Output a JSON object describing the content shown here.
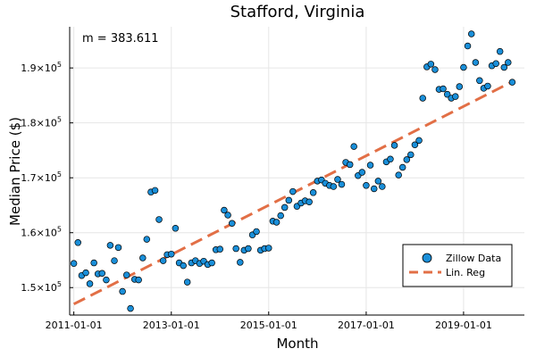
{
  "colors": {
    "scatter": "#1a8fd9",
    "scatter_stroke": "#000000",
    "regression": "#e26f46",
    "grid": "#e6e6e6",
    "axis": "#000000"
  },
  "chart_data": {
    "type": "scatter",
    "title": "Stafford, Virginia",
    "xlabel": "Month",
    "ylabel": "Median Price ($)",
    "annotation": "m = 383.611",
    "x_scale": "date",
    "xlim": [
      "2010-12-01",
      "2020-04-01"
    ],
    "ylim": [
      145000,
      197500
    ],
    "x_ticks": [
      "2011-01-01",
      "2013-01-01",
      "2015-01-01",
      "2017-01-01",
      "2019-01-01"
    ],
    "y_ticks": [
      {
        "value": 150000,
        "mantissa": "1.5",
        "base": "10",
        "exp": "5"
      },
      {
        "value": 160000,
        "mantissa": "1.6",
        "base": "10",
        "exp": "5"
      },
      {
        "value": 170000,
        "mantissa": "1.7",
        "base": "10",
        "exp": "5"
      },
      {
        "value": 180000,
        "mantissa": "1.8",
        "base": "10",
        "exp": "5"
      },
      {
        "value": 190000,
        "mantissa": "1.9",
        "base": "10",
        "exp": "5"
      }
    ],
    "grid": true,
    "legend_position": "bottom-right",
    "series": [
      {
        "name": "Zillow Data",
        "marker": "circle",
        "points": [
          [
            "2011-01-01",
            154400
          ],
          [
            "2011-02-01",
            158200
          ],
          [
            "2011-03-01",
            152200
          ],
          [
            "2011-04-01",
            152700
          ],
          [
            "2011-05-01",
            150700
          ],
          [
            "2011-06-01",
            154500
          ],
          [
            "2011-07-01",
            152500
          ],
          [
            "2011-08-01",
            152600
          ],
          [
            "2011-09-01",
            151400
          ],
          [
            "2011-10-01",
            157700
          ],
          [
            "2011-11-01",
            154900
          ],
          [
            "2011-12-01",
            157300
          ],
          [
            "2012-01-01",
            149300
          ],
          [
            "2012-02-01",
            152300
          ],
          [
            "2012-03-01",
            146200
          ],
          [
            "2012-04-01",
            151500
          ],
          [
            "2012-05-01",
            151400
          ],
          [
            "2012-06-01",
            155400
          ],
          [
            "2012-07-01",
            158800
          ],
          [
            "2012-08-01",
            167400
          ],
          [
            "2012-09-01",
            167700
          ],
          [
            "2012-10-01",
            162400
          ],
          [
            "2012-11-01",
            154900
          ],
          [
            "2012-12-01",
            156000
          ],
          [
            "2013-01-01",
            156100
          ],
          [
            "2013-02-01",
            160800
          ],
          [
            "2013-03-01",
            154500
          ],
          [
            "2013-04-01",
            154000
          ],
          [
            "2013-05-01",
            151000
          ],
          [
            "2013-06-01",
            154500
          ],
          [
            "2013-07-01",
            154900
          ],
          [
            "2013-08-01",
            154400
          ],
          [
            "2013-09-01",
            154800
          ],
          [
            "2013-10-01",
            154200
          ],
          [
            "2013-11-01",
            154500
          ],
          [
            "2013-12-01",
            156900
          ],
          [
            "2014-01-01",
            157000
          ],
          [
            "2014-02-01",
            164100
          ],
          [
            "2014-03-01",
            163200
          ],
          [
            "2014-04-01",
            161700
          ],
          [
            "2014-05-01",
            157100
          ],
          [
            "2014-06-01",
            154600
          ],
          [
            "2014-07-01",
            156800
          ],
          [
            "2014-08-01",
            157100
          ],
          [
            "2014-09-01",
            159600
          ],
          [
            "2014-10-01",
            160200
          ],
          [
            "2014-11-01",
            156800
          ],
          [
            "2014-12-01",
            157100
          ],
          [
            "2015-01-01",
            157200
          ],
          [
            "2015-02-01",
            162100
          ],
          [
            "2015-03-01",
            161900
          ],
          [
            "2015-04-01",
            163100
          ],
          [
            "2015-05-01",
            164600
          ],
          [
            "2015-06-01",
            165900
          ],
          [
            "2015-07-01",
            167500
          ],
          [
            "2015-08-01",
            164800
          ],
          [
            "2015-09-01",
            165400
          ],
          [
            "2015-10-01",
            165800
          ],
          [
            "2015-11-01",
            165600
          ],
          [
            "2015-12-01",
            167300
          ],
          [
            "2016-01-01",
            169400
          ],
          [
            "2016-02-01",
            169600
          ],
          [
            "2016-03-01",
            169000
          ],
          [
            "2016-04-01",
            168600
          ],
          [
            "2016-05-01",
            168400
          ],
          [
            "2016-06-01",
            169700
          ],
          [
            "2016-07-01",
            168800
          ],
          [
            "2016-08-01",
            172800
          ],
          [
            "2016-09-01",
            172400
          ],
          [
            "2016-10-01",
            175700
          ],
          [
            "2016-11-01",
            170400
          ],
          [
            "2016-12-01",
            171000
          ],
          [
            "2017-01-01",
            168600
          ],
          [
            "2017-02-01",
            172300
          ],
          [
            "2017-03-01",
            168000
          ],
          [
            "2017-04-01",
            169400
          ],
          [
            "2017-05-01",
            168400
          ],
          [
            "2017-06-01",
            172900
          ],
          [
            "2017-07-01",
            173400
          ],
          [
            "2017-08-01",
            175900
          ],
          [
            "2017-09-01",
            170500
          ],
          [
            "2017-10-01",
            171900
          ],
          [
            "2017-11-01",
            173300
          ],
          [
            "2017-12-01",
            174200
          ],
          [
            "2018-01-01",
            176000
          ],
          [
            "2018-02-01",
            176800
          ],
          [
            "2018-03-01",
            184500
          ],
          [
            "2018-04-01",
            190200
          ],
          [
            "2018-05-01",
            190700
          ],
          [
            "2018-06-01",
            189700
          ],
          [
            "2018-07-01",
            186100
          ],
          [
            "2018-08-01",
            186200
          ],
          [
            "2018-09-01",
            185200
          ],
          [
            "2018-10-01",
            184500
          ],
          [
            "2018-11-01",
            184800
          ],
          [
            "2018-12-01",
            186600
          ],
          [
            "2019-01-01",
            190100
          ],
          [
            "2019-02-01",
            194000
          ],
          [
            "2019-03-01",
            196200
          ],
          [
            "2019-04-01",
            191000
          ],
          [
            "2019-05-01",
            187700
          ],
          [
            "2019-06-01",
            186300
          ],
          [
            "2019-07-01",
            186700
          ],
          [
            "2019-08-01",
            190400
          ],
          [
            "2019-09-01",
            190800
          ],
          [
            "2019-10-01",
            193000
          ],
          [
            "2019-11-01",
            190100
          ],
          [
            "2019-12-01",
            191000
          ],
          [
            "2020-01-01",
            187400
          ]
        ]
      },
      {
        "name": "Lin. Reg",
        "line": "dashed",
        "points": [
          [
            "2011-01-01",
            147000
          ],
          [
            "2020-01-01",
            187500
          ]
        ]
      }
    ]
  }
}
